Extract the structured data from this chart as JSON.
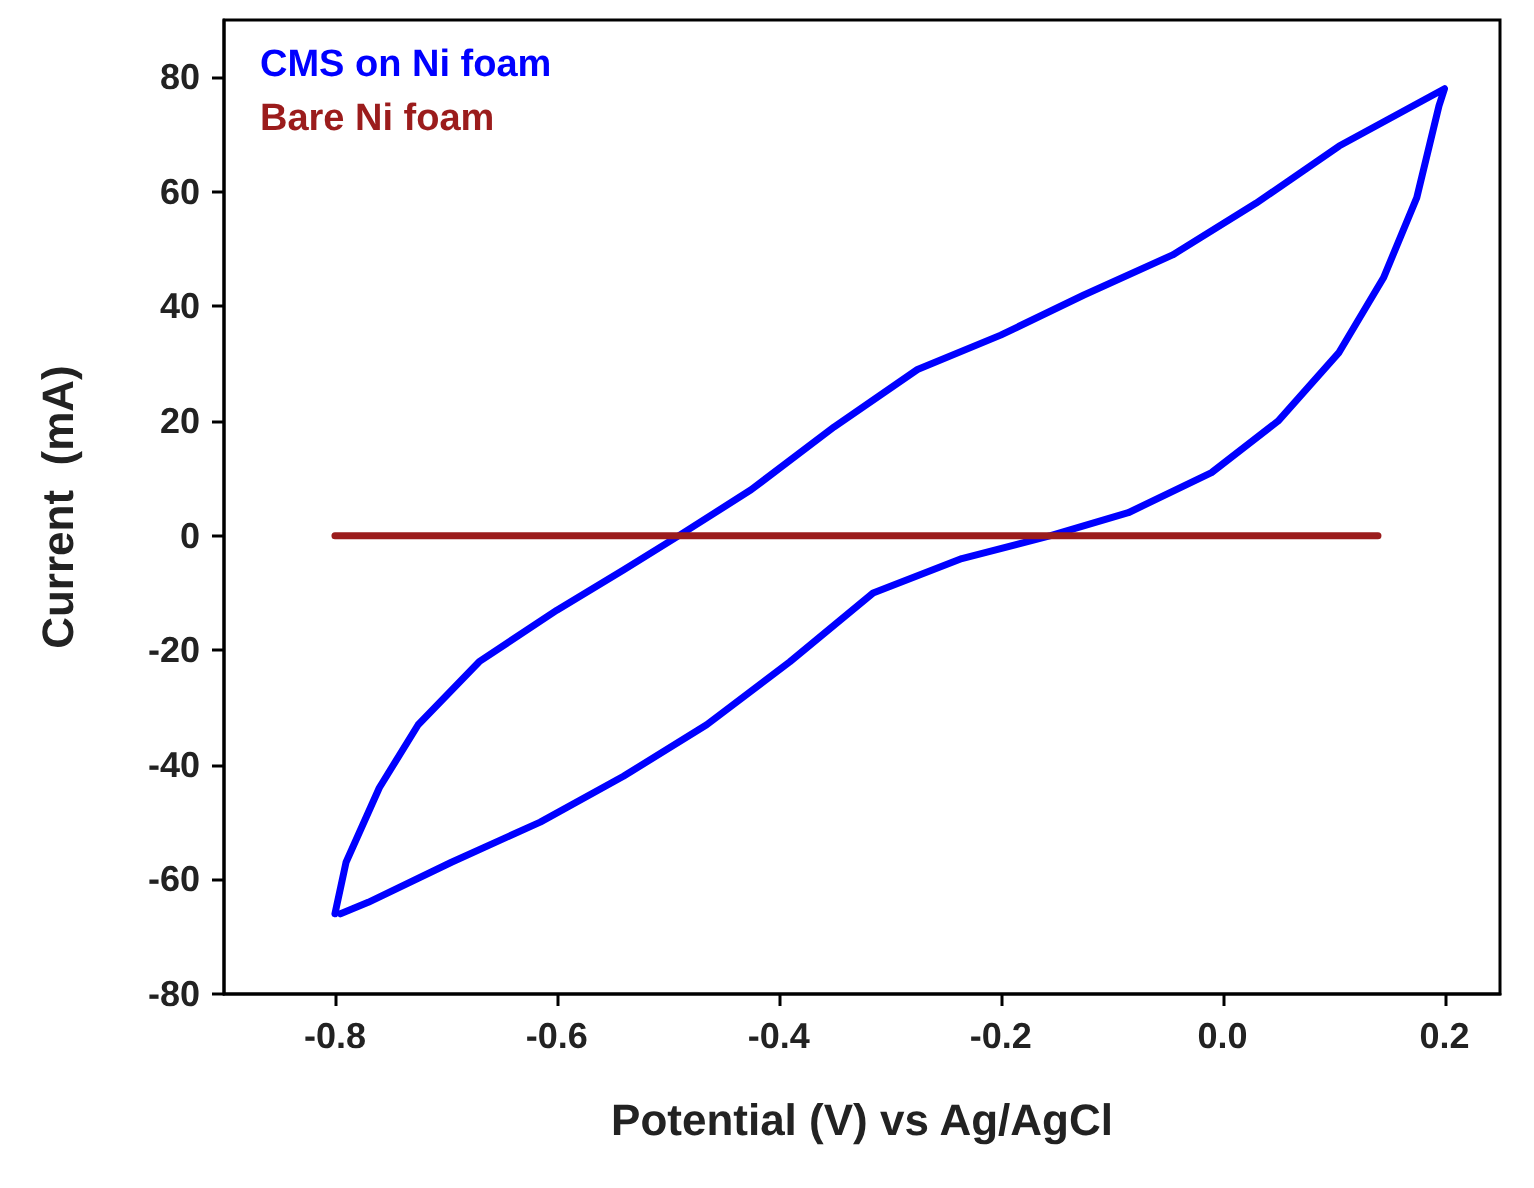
{
  "chart_data": {
    "type": "line",
    "xlabel": "Potential (V) vs Ag/AgCl",
    "ylabel": "Current  (mA)",
    "xlim": [
      -0.9,
      0.25
    ],
    "xticks": [
      {
        "value": -0.8,
        "label": "-0.8"
      },
      {
        "value": -0.6,
        "label": "-0.6"
      },
      {
        "value": -0.4,
        "label": "-0.4"
      },
      {
        "value": -0.2,
        "label": "-0.2"
      },
      {
        "value": 0,
        "label": "0.0"
      },
      {
        "value": 0.2,
        "label": "0.2"
      }
    ],
    "ylim": [
      -80,
      90
    ],
    "yticks": [
      -80,
      -60,
      -40,
      -20,
      0,
      20,
      40,
      60,
      80
    ],
    "legend": "top left",
    "grid": false,
    "series": [
      {
        "name": "CMS on Ni foam",
        "color": "#0000ff",
        "x": [
          -0.8,
          -0.79,
          -0.76,
          -0.725,
          -0.67,
          -0.6,
          -0.54,
          -0.49,
          -0.425,
          -0.35,
          -0.275,
          -0.2,
          -0.125,
          -0.045,
          0.03,
          0.105,
          0.2,
          0.195,
          0.175,
          0.145,
          0.105,
          0.05,
          -0.01,
          -0.085,
          -0.155,
          -0.235,
          -0.315,
          -0.39,
          -0.465,
          -0.54,
          -0.615,
          -0.695,
          -0.77,
          -0.795
        ],
        "values": [
          -66,
          -57,
          -44,
          -33,
          -22,
          -13,
          -6,
          0,
          8,
          19,
          29,
          35,
          42,
          49,
          58,
          68,
          78,
          75,
          59,
          45,
          32,
          20,
          11,
          4,
          0,
          -4,
          -10,
          -22,
          -33,
          -42,
          -50,
          -57,
          -64,
          -66
        ]
      },
      {
        "name": "Bare Ni foam",
        "color": "#9b1c1c",
        "x": [
          -0.8,
          0.14
        ],
        "values": [
          0,
          0
        ]
      }
    ]
  }
}
